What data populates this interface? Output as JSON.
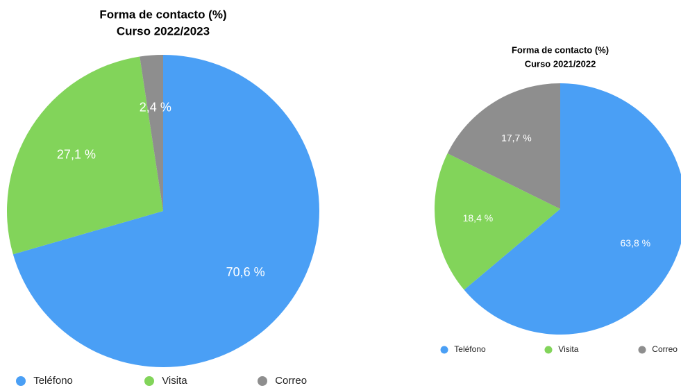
{
  "chart_data": [
    {
      "type": "pie",
      "title": "Forma de contacto (%)",
      "subtitle": "Curso 2022/2023",
      "categories": [
        "Teléfono",
        "Visita",
        "Correo"
      ],
      "values": [
        70.6,
        27.1,
        2.4
      ],
      "value_labels": [
        "70,6 %",
        "27,1 %",
        "2,4 %"
      ],
      "colors": [
        "#4a9ff5",
        "#82d45a",
        "#8e8e8e"
      ]
    },
    {
      "type": "pie",
      "title": "Forma de contacto (%)",
      "subtitle": "Curso 2021/2022",
      "categories": [
        "Teléfono",
        "Visita",
        "Correo"
      ],
      "values": [
        63.8,
        18.4,
        17.7
      ],
      "value_labels": [
        "63,8 %",
        "18,4 %",
        "17,7 %"
      ],
      "colors": [
        "#4a9ff5",
        "#82d45a",
        "#8e8e8e"
      ]
    }
  ]
}
